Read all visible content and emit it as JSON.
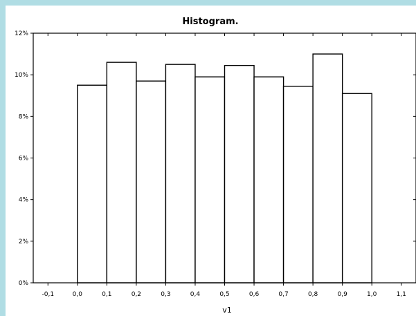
{
  "chart_data": {
    "type": "bar",
    "title": "Histogram.",
    "xlabel": "v1",
    "ylabel": "",
    "bin_start": [
      0.0,
      0.1,
      0.2,
      0.3,
      0.4,
      0.5,
      0.6,
      0.7,
      0.8,
      0.9
    ],
    "bin_width": 0.1,
    "values": [
      9.5,
      10.6,
      9.7,
      10.5,
      9.9,
      10.45,
      9.9,
      9.45,
      11.0,
      9.1
    ],
    "xlim": [
      -0.15,
      1.15
    ],
    "ylim": [
      0,
      12
    ],
    "x_ticks": [
      -0.1,
      0.0,
      0.1,
      0.2,
      0.3,
      0.4,
      0.5,
      0.6,
      0.7,
      0.8,
      0.9,
      1.0,
      1.1
    ],
    "x_tick_labels": [
      "-0,1",
      "0,0",
      "0,1",
      "0,2",
      "0,3",
      "0,4",
      "0,5",
      "0,6",
      "0,7",
      "0,8",
      "0,9",
      "1,0",
      "1,1"
    ],
    "y_ticks": [
      0,
      2,
      4,
      6,
      8,
      10,
      12
    ],
    "y_tick_labels": [
      "0%",
      "2%",
      "4%",
      "6%",
      "8%",
      "10%",
      "12%"
    ],
    "grid": false,
    "bar_fill": "#ffffff",
    "bar_stroke": "#000000"
  }
}
